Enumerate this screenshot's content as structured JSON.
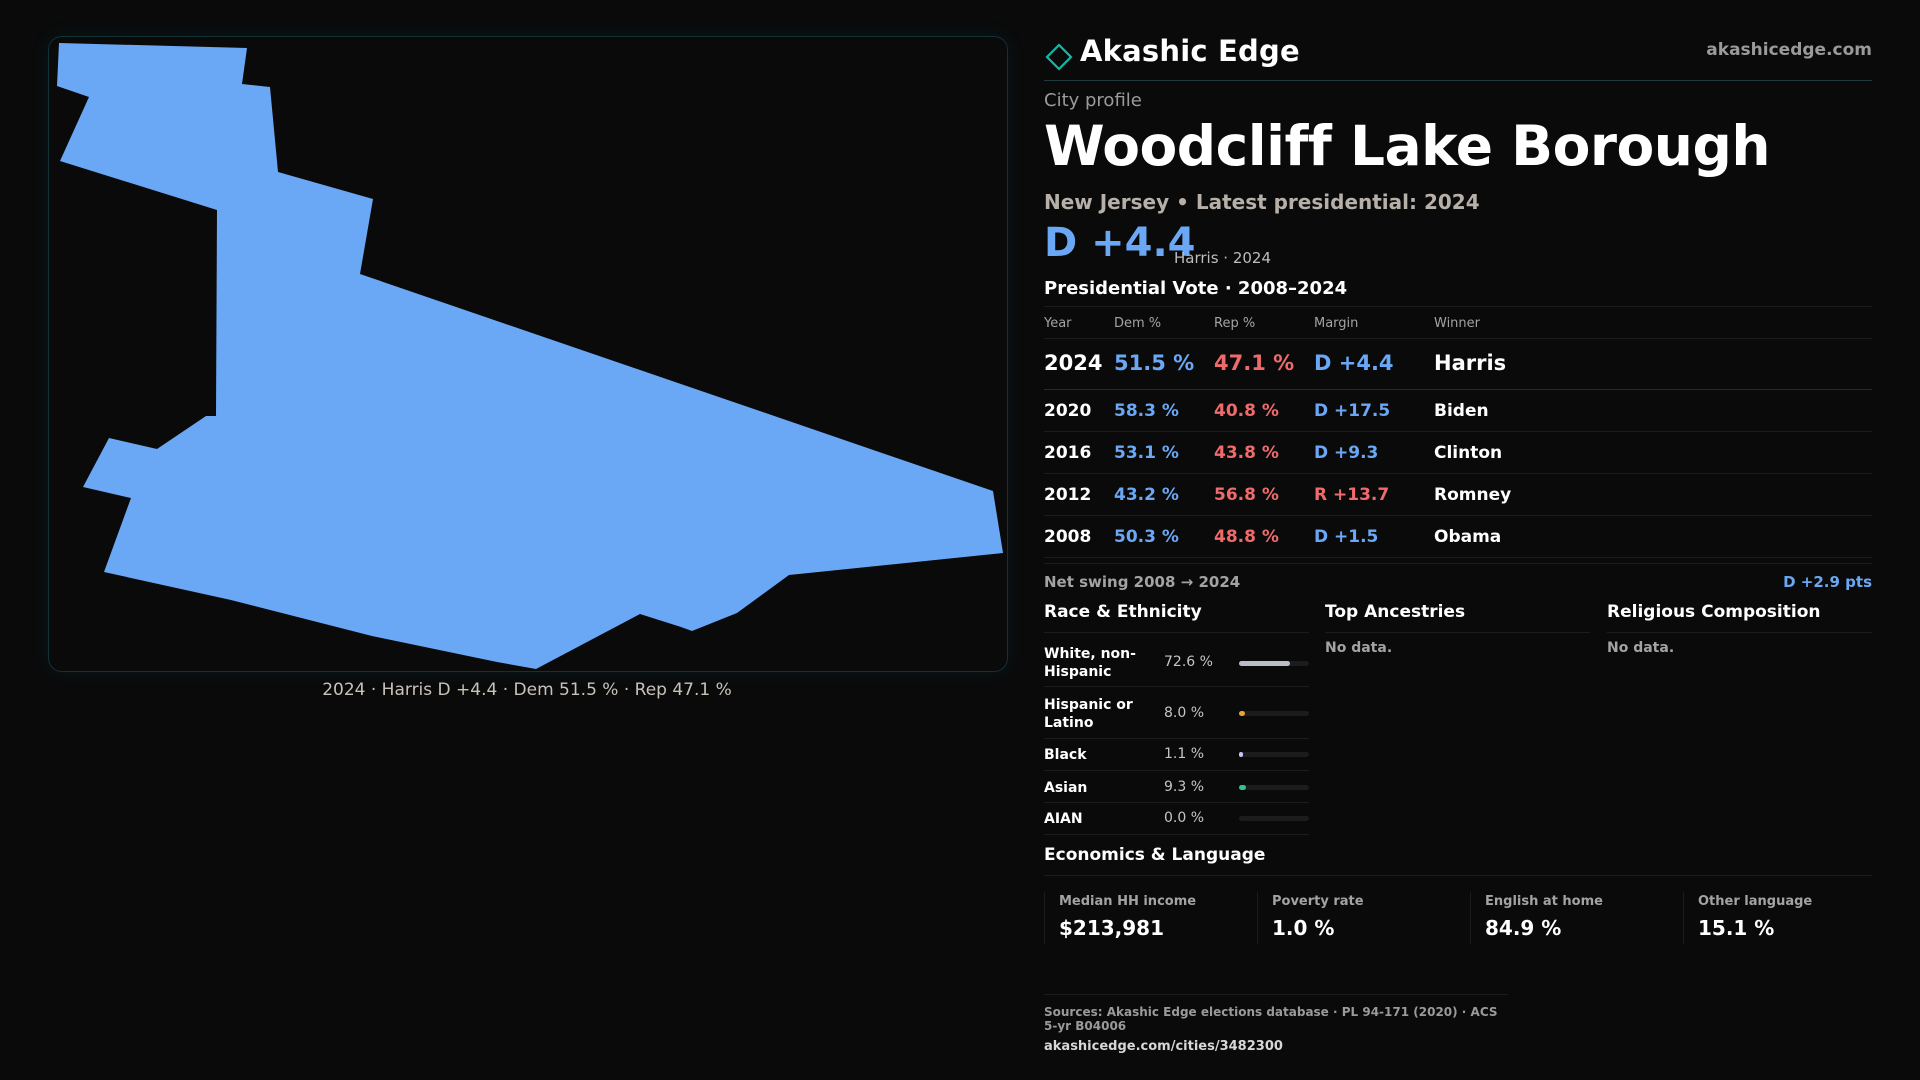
{
  "brand": {
    "name": "Akashic Edge",
    "url": "akashicedge.com",
    "logo_icon": "diamond-outline-icon",
    "accent": "#14b8a6"
  },
  "profile": {
    "label": "City profile",
    "city": "Woodcliff Lake Borough",
    "subtitle": "New Jersey • Latest presidential: 2024",
    "margin": "D +4.4",
    "margin_note": "Harris · 2024"
  },
  "map": {
    "fill_color": "#6aa8f6",
    "caption": "2024 · Harris D +4.4 · Dem 51.5 % · Rep 47.1 %"
  },
  "vote": {
    "title": "Presidential Vote · 2008–2024",
    "headers": {
      "year": "Year",
      "dem": "Dem %",
      "rep": "Rep %",
      "margin": "Margin",
      "winner": "Winner"
    },
    "rows": [
      {
        "year": "2024",
        "dem": "51.5 %",
        "rep": "47.1 %",
        "margin": "D +4.4",
        "winner": "Harris",
        "party": "D"
      },
      {
        "year": "2020",
        "dem": "58.3 %",
        "rep": "40.8 %",
        "margin": "D +17.5",
        "winner": "Biden",
        "party": "D"
      },
      {
        "year": "2016",
        "dem": "53.1 %",
        "rep": "43.8 %",
        "margin": "D +9.3",
        "winner": "Clinton",
        "party": "D"
      },
      {
        "year": "2012",
        "dem": "43.2 %",
        "rep": "56.8 %",
        "margin": "R +13.7",
        "winner": "Romney",
        "party": "R"
      },
      {
        "year": "2008",
        "dem": "50.3 %",
        "rep": "48.8 %",
        "margin": "D +1.5",
        "winner": "Obama",
        "party": "D"
      }
    ],
    "swing_label": "Net swing 2008 → 2024",
    "swing_value": "D +2.9 pts",
    "dem_color": "#6aa8f6",
    "rep_color": "#ef6b6b"
  },
  "race": {
    "title": "Race & Ethnicity",
    "rows": [
      {
        "label": "White, non-Hispanic",
        "pct": "72.6 %",
        "value": 72.6,
        "color": "#b9bec6"
      },
      {
        "label": "Hispanic or Latino",
        "pct": "8.0 %",
        "value": 8.0,
        "color": "#e8a33b"
      },
      {
        "label": "Black",
        "pct": "1.1 %",
        "value": 1.1,
        "color": "#c9c2f2"
      },
      {
        "label": "Asian",
        "pct": "9.3 %",
        "value": 9.3,
        "color": "#2fc58a"
      },
      {
        "label": "AIAN",
        "pct": "0.0 %",
        "value": 0.0,
        "color": "#8a8a8a"
      }
    ]
  },
  "ancestries": {
    "title": "Top Ancestries",
    "empty": "No data."
  },
  "religion": {
    "title": "Religious Composition",
    "empty": "No data."
  },
  "economics": {
    "title": "Economics & Language",
    "cards": [
      {
        "label": "Median HH income",
        "value": "$213,981"
      },
      {
        "label": "Poverty rate",
        "value": "1.0 %"
      },
      {
        "label": "English at home",
        "value": "84.9 %"
      },
      {
        "label": "Other language",
        "value": "15.1 %"
      }
    ]
  },
  "sources": {
    "line": "Sources: Akashic Edge elections database · PL 94-171 (2020) · ACS 5-yr B04006",
    "url": "akashicedge.com/cities/3482300"
  }
}
